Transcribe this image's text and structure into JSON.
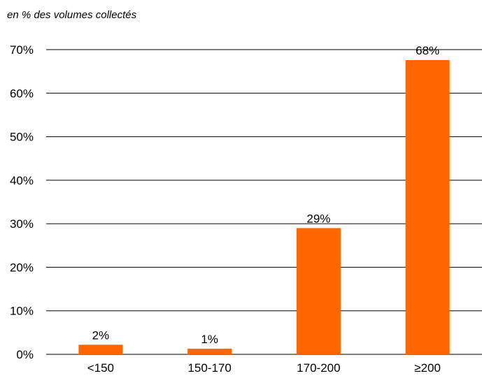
{
  "chart_data": {
    "type": "bar",
    "subtitle": "en % des volumes collectés",
    "categories": [
      "<150",
      "150-170",
      "170-200",
      "≥200"
    ],
    "values": [
      2.2,
      1.3,
      29,
      67.6
    ],
    "data_labels": [
      "2%",
      "1%",
      "29%",
      "68%"
    ],
    "ylim": [
      0,
      70
    ],
    "yticks": [
      0,
      10,
      20,
      30,
      40,
      50,
      60,
      70
    ],
    "ytick_labels": [
      "0%",
      "10%",
      "20%",
      "30%",
      "40%",
      "50%",
      "60%",
      "70%"
    ],
    "grid": true,
    "bar_color": "#ff6600"
  }
}
